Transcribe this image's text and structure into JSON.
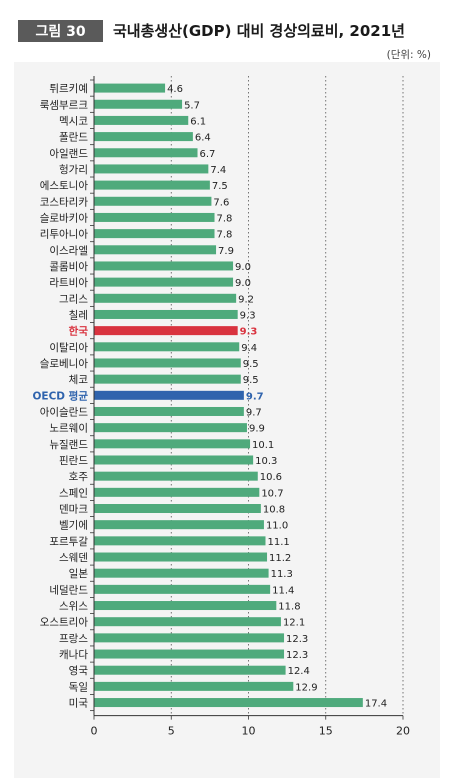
{
  "figure": {
    "badge": "그림 30",
    "title": "국내총생산(GDP) 대비 경상의료비, 2021년",
    "unit": "(단위: %)"
  },
  "colors": {
    "bar": "#4faa7c",
    "korea": "#d9333f",
    "oecd": "#2f63ad",
    "grid": "#555555",
    "panel": "#f4f4f4"
  },
  "chart_data": {
    "type": "bar",
    "orientation": "horizontal",
    "categories": [
      "튀르키예",
      "룩셈부르크",
      "멕시코",
      "폴란드",
      "아일랜드",
      "헝가리",
      "에스토니아",
      "코스타리카",
      "슬로바키아",
      "리투아니아",
      "이스라엘",
      "콜롬비아",
      "라트비아",
      "그리스",
      "칠레",
      "한국",
      "이탈리아",
      "슬로베니아",
      "체코",
      "OECD 평균",
      "아이슬란드",
      "노르웨이",
      "뉴질랜드",
      "핀란드",
      "호주",
      "스페인",
      "덴마크",
      "벨기에",
      "포르투갈",
      "스웨덴",
      "일본",
      "네덜란드",
      "스위스",
      "오스트리아",
      "프랑스",
      "캐나다",
      "영국",
      "독일",
      "미국"
    ],
    "values": [
      4.6,
      5.7,
      6.1,
      6.4,
      6.7,
      7.4,
      7.5,
      7.6,
      7.8,
      7.8,
      7.9,
      9.0,
      9.0,
      9.2,
      9.3,
      9.3,
      9.4,
      9.5,
      9.5,
      9.7,
      9.7,
      9.9,
      10.1,
      10.3,
      10.6,
      10.7,
      10.8,
      11.0,
      11.1,
      11.2,
      11.3,
      11.4,
      11.8,
      12.1,
      12.3,
      12.3,
      12.4,
      12.9,
      17.4
    ],
    "value_labels": [
      "4.6",
      "5.7",
      "6.1",
      "6.4",
      "6.7",
      "7.4",
      "7.5",
      "7.6",
      "7.8",
      "7.8",
      "7.9",
      "9.0",
      "9.0",
      "9.2",
      "9.3",
      "9.3",
      "9.4",
      "9.5",
      "9.5",
      "9.7",
      "9.7",
      "9.9",
      "10.1",
      "10.3",
      "10.6",
      "10.7",
      "10.8",
      "11.0",
      "11.1",
      "11.2",
      "11.3",
      "11.4",
      "11.8",
      "12.1",
      "12.3",
      "12.3",
      "12.4",
      "12.9",
      "17.4"
    ],
    "highlight": {
      "한국": "korea",
      "OECD 평균": "oecd"
    },
    "xlim": [
      0,
      20
    ],
    "xticks": [
      0,
      5,
      10,
      15,
      20
    ],
    "xtick_labels": [
      "0",
      "5",
      "10",
      "15",
      "20"
    ],
    "grid": "vertical dotted",
    "xlabel": "",
    "ylabel": ""
  }
}
